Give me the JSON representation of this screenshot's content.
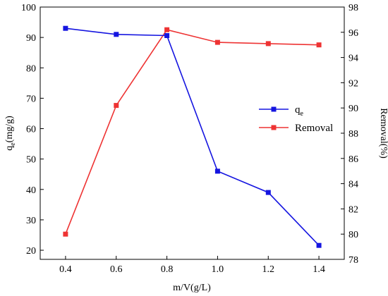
{
  "chart_data": {
    "type": "line",
    "xlabel": "m/V(g/L)",
    "y_left_label": {
      "main": "q",
      "sub": "e",
      "rest": "(mg/g)"
    },
    "y_right_label": "Removal(%)",
    "x_ticks": [
      "0.4",
      "0.6",
      "0.8",
      "1.0",
      "1.2",
      "1.4"
    ],
    "y_left_ticks": [
      "20",
      "30",
      "40",
      "50",
      "60",
      "70",
      "80",
      "90",
      "100"
    ],
    "y_right_ticks": [
      "78",
      "80",
      "82",
      "84",
      "86",
      "88",
      "90",
      "92",
      "94",
      "96",
      "98"
    ],
    "xlim": [
      0.3,
      1.5
    ],
    "ylim_left": [
      17,
      100
    ],
    "ylim_right": [
      78,
      98
    ],
    "legend_position": "right",
    "series": [
      {
        "name": {
          "main": "q",
          "sub": "e"
        },
        "axis": "left",
        "color": "#1515e0",
        "x": [
          0.4,
          0.6,
          0.8,
          1.0,
          1.2,
          1.4
        ],
        "y": [
          93.0,
          91.0,
          90.6,
          46.0,
          39.0,
          21.6
        ]
      },
      {
        "name": "Removal",
        "axis": "right",
        "color": "#ee3333",
        "x": [
          0.4,
          0.6,
          0.8,
          1.0,
          1.2,
          1.4
        ],
        "y": [
          80.0,
          90.2,
          96.2,
          95.2,
          95.1,
          95.0
        ]
      }
    ]
  }
}
